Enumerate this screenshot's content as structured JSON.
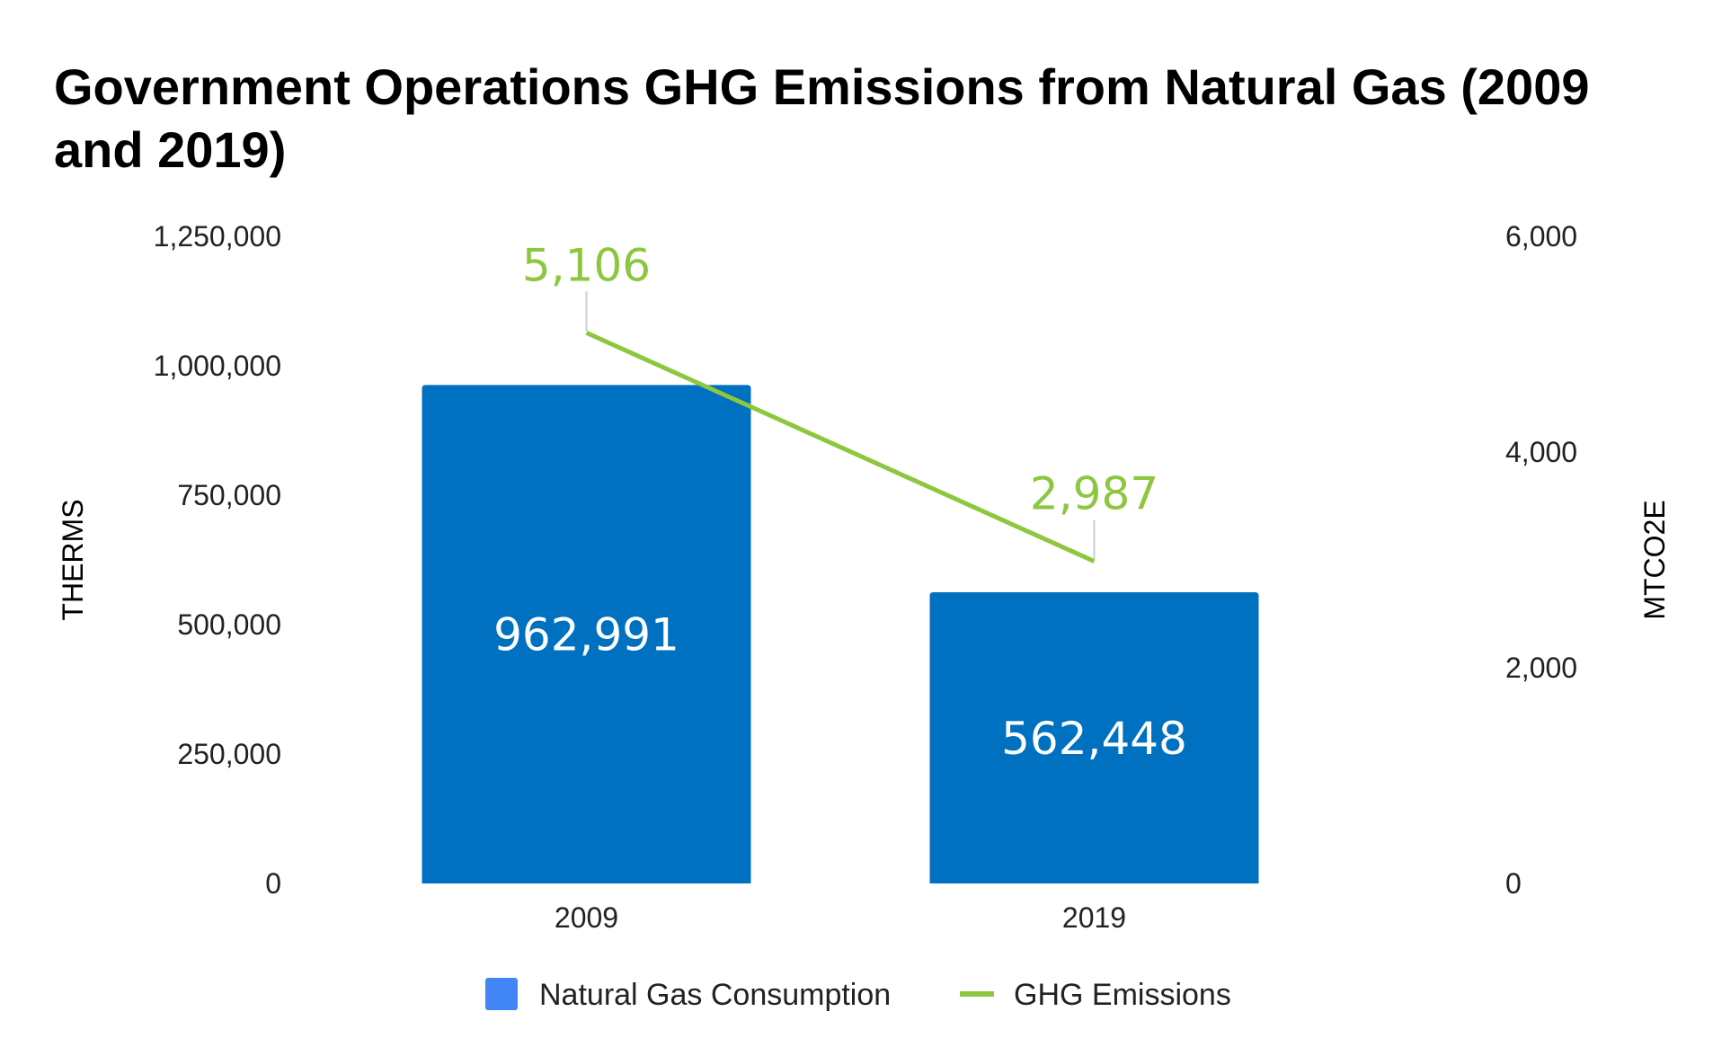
{
  "chart_data": {
    "type": "bar",
    "title": "Government Operations GHG Emissions from Natural Gas (2009 and 2019)",
    "categories": [
      "2009",
      "2019"
    ],
    "series": [
      {
        "name": "Natural Gas Consumption",
        "type": "bar",
        "axis": "left",
        "values": [
          962991,
          562448
        ],
        "labels": [
          "962,991",
          "562,448"
        ],
        "color": "#0070C0",
        "legend_color": "#4285F4"
      },
      {
        "name": "GHG Emissions",
        "type": "line",
        "axis": "right",
        "values": [
          5106,
          2987
        ],
        "labels": [
          "5,106",
          "2,987"
        ],
        "color": "#8DC63F"
      }
    ],
    "ylabel": "THERMS",
    "ylim": [
      0,
      1250000
    ],
    "yticks": [
      "0",
      "250,000",
      "500,000",
      "750,000",
      "1,000,000",
      "1,250,000"
    ],
    "y2label": "MTCO2E",
    "y2lim": [
      0,
      6000
    ],
    "y2ticks": [
      "0",
      "2,000",
      "4,000",
      "6,000"
    ],
    "grid": false,
    "legend_position": "bottom"
  }
}
